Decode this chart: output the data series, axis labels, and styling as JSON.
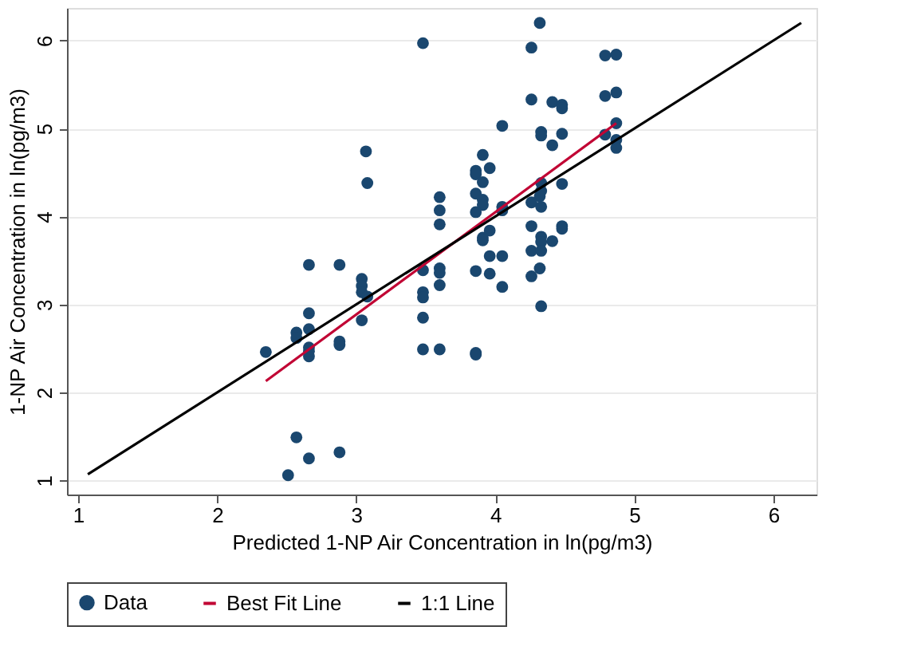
{
  "chart_data": {
    "type": "scatter",
    "xlabel": "Predicted 1-NP Air Concentration in ln(pg/m3)",
    "ylabel": "1-NP Air Concentration in ln(pg/m3)",
    "xlim": [
      0.92,
      6.31
    ],
    "ylim": [
      0.84,
      6.37
    ],
    "xticks": [
      1,
      2,
      3,
      4,
      5,
      6
    ],
    "yticks": [
      1,
      2,
      3,
      4,
      5,
      6
    ],
    "grid": "y",
    "legend": "bottom",
    "series": [
      {
        "name": "Data",
        "marker": "circle",
        "color": "#1a476f",
        "x": [
          2.51,
          2.57,
          2.66,
          2.88,
          2.35,
          2.57,
          2.57,
          2.66,
          2.66,
          2.66,
          2.66,
          2.66,
          2.66,
          2.88,
          2.88,
          2.88,
          3.07,
          3.08,
          3.04,
          3.04,
          3.04,
          3.08,
          3.04,
          3.48,
          3.48,
          3.48,
          3.48,
          3.48,
          3.48,
          3.6,
          3.6,
          3.6,
          3.6,
          3.6,
          3.6,
          3.6,
          3.91,
          3.86,
          3.86,
          3.91,
          3.96,
          3.86,
          3.91,
          3.91,
          3.86,
          3.96,
          3.91,
          3.91,
          3.96,
          3.86,
          3.96,
          3.86,
          3.86,
          4.05,
          4.05,
          4.05,
          4.05,
          4.05,
          4.32,
          4.26,
          4.26,
          4.41,
          4.48,
          4.48,
          4.33,
          4.33,
          4.48,
          4.41,
          4.33,
          4.33,
          4.32,
          4.26,
          4.33,
          4.48,
          4.26,
          4.48,
          4.48,
          4.33,
          4.33,
          4.41,
          4.26,
          4.33,
          4.32,
          4.26,
          4.33,
          4.79,
          4.87,
          4.79,
          4.87,
          4.87,
          4.79,
          4.87,
          4.87
        ],
        "values": [
          1.06,
          1.49,
          1.25,
          1.32,
          2.46,
          2.68,
          2.62,
          3.45,
          2.9,
          2.72,
          2.51,
          2.41,
          2.47,
          3.45,
          2.58,
          2.54,
          4.74,
          4.38,
          3.29,
          3.21,
          3.14,
          3.09,
          2.82,
          5.97,
          3.39,
          3.14,
          3.08,
          2.85,
          2.49,
          4.22,
          4.07,
          3.91,
          3.41,
          3.36,
          3.22,
          2.49,
          4.7,
          4.52,
          4.48,
          4.39,
          4.55,
          4.26,
          4.19,
          4.13,
          4.05,
          3.84,
          3.76,
          3.73,
          3.55,
          3.38,
          3.35,
          2.45,
          2.43,
          5.03,
          4.11,
          4.07,
          3.55,
          3.2,
          6.2,
          5.92,
          5.33,
          5.3,
          5.27,
          5.23,
          4.96,
          4.92,
          4.94,
          4.81,
          4.38,
          4.29,
          4.23,
          4.16,
          4.11,
          4.37,
          3.89,
          3.89,
          3.86,
          3.77,
          3.71,
          3.72,
          3.61,
          3.61,
          3.41,
          3.32,
          2.98,
          5.83,
          5.84,
          5.37,
          5.41,
          5.06,
          4.93,
          4.87,
          4.78
        ]
      },
      {
        "name": "Best Fit Line",
        "type": "line",
        "color": "#c10534",
        "x": [
          2.35,
          4.87
        ],
        "values": [
          2.13,
          5.06
        ]
      },
      {
        "name": "1:1 Line",
        "type": "line",
        "color": "#000000",
        "x": [
          1.07,
          6.2
        ],
        "values": [
          1.07,
          6.2
        ]
      }
    ]
  }
}
